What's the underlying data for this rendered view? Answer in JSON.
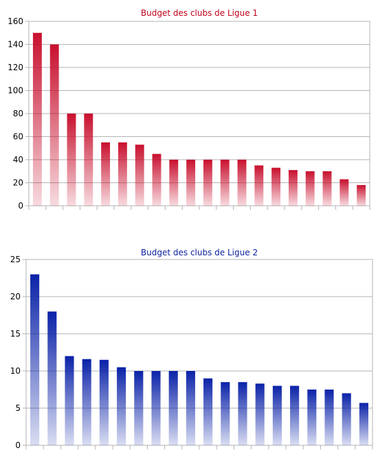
{
  "chart_data": [
    {
      "type": "bar",
      "title": "Budget des clubs de Ligue 1",
      "title_color": "#c0001a",
      "bar_color": "#c8102e",
      "values": [
        150,
        140,
        80,
        80,
        55,
        55,
        53,
        45,
        40,
        40,
        40,
        40,
        40,
        35,
        33,
        31,
        30,
        30,
        23,
        18
      ],
      "ylim": [
        0,
        160
      ],
      "yticks": [
        0,
        20,
        40,
        60,
        80,
        100,
        120,
        140,
        160
      ],
      "xlabel": "",
      "ylabel": "",
      "grid": true
    },
    {
      "type": "bar",
      "title": "Budget des clubs de Ligue 2",
      "title_color": "#0a1f9c",
      "bar_color": "#0a22a8",
      "values": [
        23,
        18,
        12,
        11.6,
        11.5,
        10.5,
        10,
        10,
        10,
        10,
        9,
        8.5,
        8.5,
        8.3,
        8,
        8,
        7.5,
        7.5,
        7,
        5.7
      ],
      "ylim": [
        0,
        25
      ],
      "yticks": [
        0,
        5,
        10,
        15,
        20,
        25
      ],
      "xlabel": "",
      "ylabel": "",
      "grid": true
    }
  ]
}
